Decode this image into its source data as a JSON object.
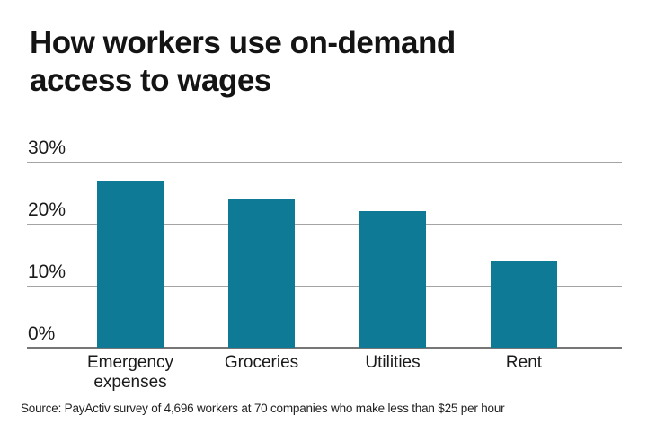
{
  "title": "How workers use on-demand access to wages",
  "title_lines": [
    "How workers use on-demand",
    "access to wages"
  ],
  "source_note": "Source: PayActiv survey of 4,696 workers at 70 companies who make less than $25 per hour",
  "colors": {
    "bar": "#0f7a96",
    "gridline": "#a4a4a4",
    "axis_line": "#767676",
    "text": "#1a1a1a",
    "background": "#ffffff"
  },
  "chart_data": {
    "type": "bar",
    "title": "How workers use on-demand access to wages",
    "categories": [
      "Emergency expenses",
      "Groceries",
      "Utilities",
      "Rent"
    ],
    "values": [
      27,
      24,
      22,
      14
    ],
    "unit": "%",
    "xlabel": "",
    "ylabel": "",
    "ylim": [
      0,
      30
    ],
    "yticks": [
      0,
      10,
      20,
      30
    ],
    "ytick_labels": [
      "0%",
      "10%",
      "20%",
      "30%"
    ],
    "grid": "horizontal",
    "legend": "none",
    "bar_color": "#0f7a96",
    "source": "Source: PayActiv survey of 4,696 workers at 70 companies who make less than $25 per hour"
  }
}
